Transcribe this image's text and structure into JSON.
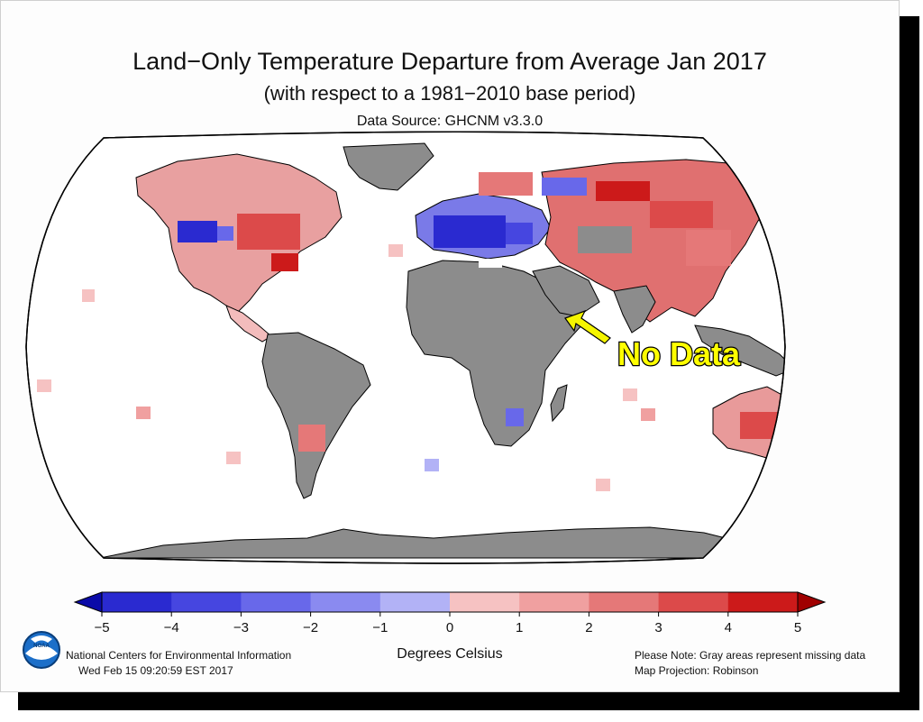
{
  "title": "Land−Only Temperature Departure from Average Jan 2017",
  "subtitle": "(with respect to a 1981−2010 base period)",
  "source": "Data Source: GHCNM v3.3.0",
  "annotation": "No Data",
  "colorbar": {
    "ticks": [
      "−5",
      "−4",
      "−3",
      "−2",
      "−1",
      "0",
      "1",
      "2",
      "3",
      "4",
      "5"
    ],
    "unit_label": "Degrees Celsius",
    "colors": [
      "#0a0aa8",
      "#2a2ad0",
      "#4646e0",
      "#6868ea",
      "#8a8af0",
      "#b2b2f6",
      "#f6c2c2",
      "#f0a0a0",
      "#e57878",
      "#dc4a4a",
      "#cc1a1a",
      "#a00000"
    ]
  },
  "footer": {
    "org": "National Centers for Environmental Information",
    "timestamp": "Wed Feb 15 09:20:59 EST 2017",
    "note": "Please Note: Gray areas represent missing data",
    "projection": "Map Projection: Robinson"
  },
  "logo_text": "NOAA",
  "colors": {
    "land_missing": "#8c8c8c",
    "arrow": "#f5f500",
    "label_text": "#ffff00"
  }
}
